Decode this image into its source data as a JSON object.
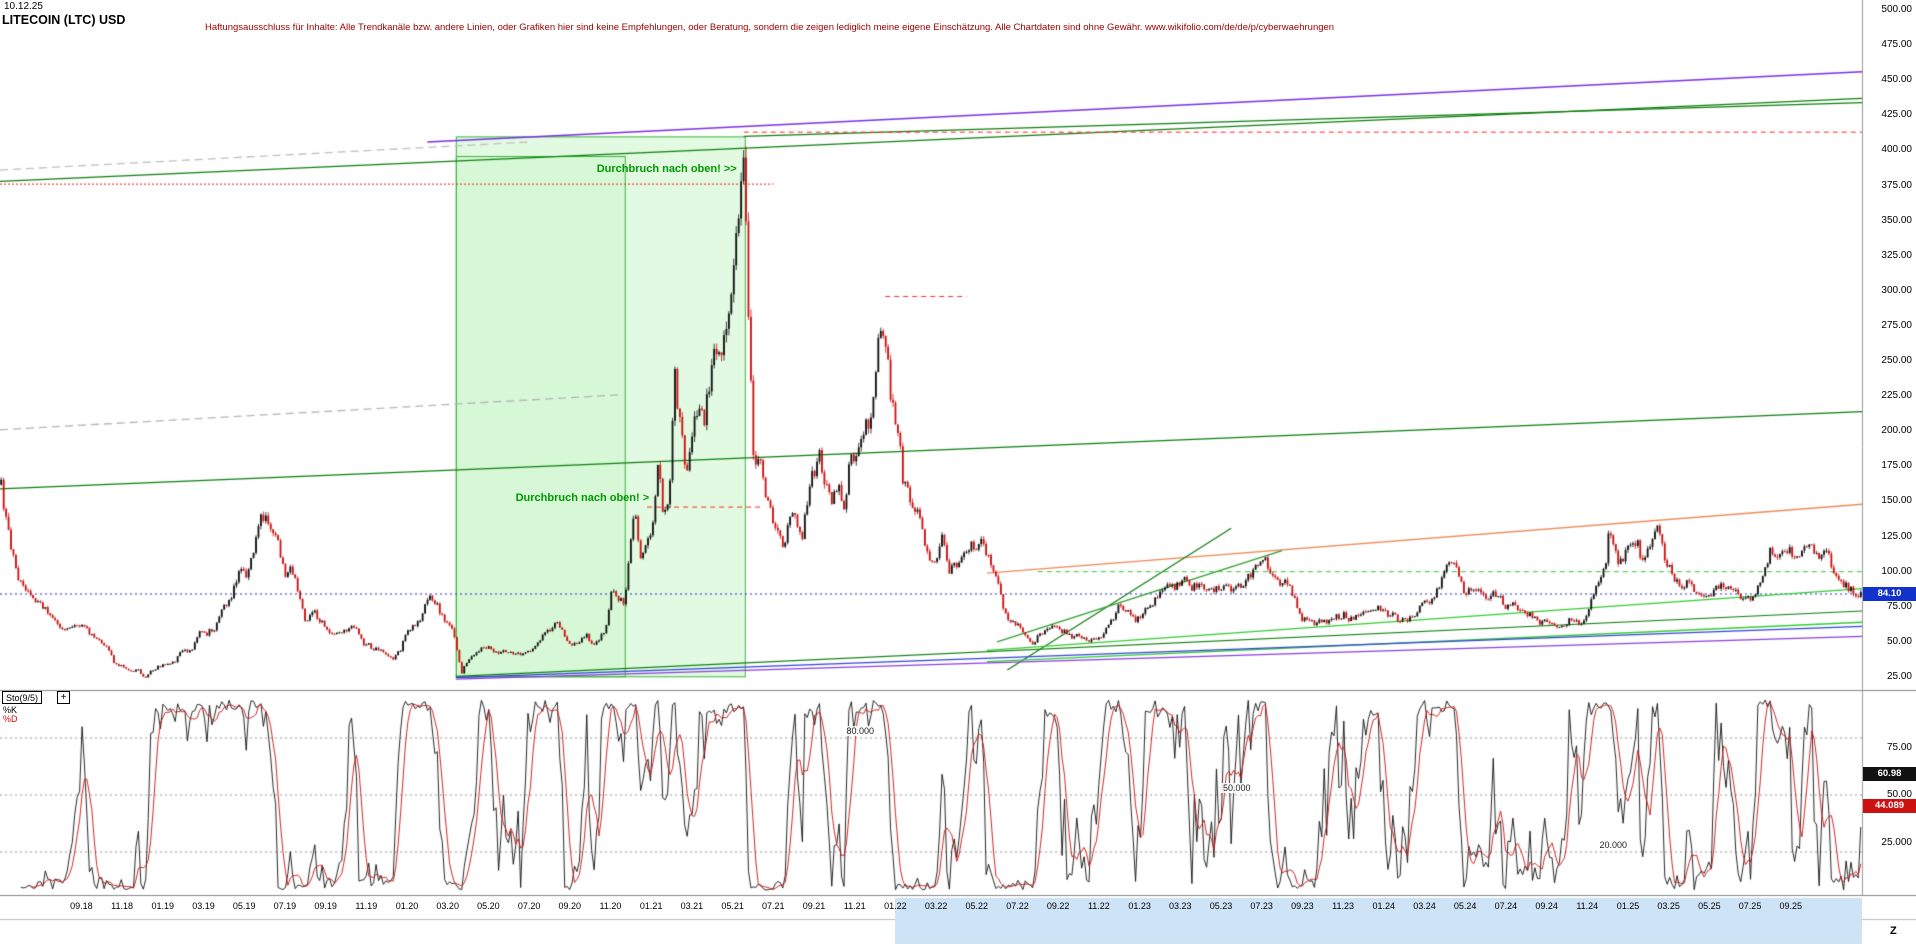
{
  "window": {
    "date_label": "10.12.25",
    "title": "LITECOIN (LTC) USD",
    "disclaimer": "Haftungsausschluss für Inhalte: Alle Trendkanäle bzw. andere Linien, oder Grafiken hier sind keine Empfehlungen, oder Beratung, sondern die zeigen lediglich meine eigene Einschätzung. Alle Chartdaten sind ohne Gewähr.  www.wikifolio.com/de/de/p/cyberwaehrungen",
    "zoom_tool_label": "Z"
  },
  "chart_data": {
    "type": "candlestick",
    "title": "LITECOIN (LTC) USD",
    "x_domain_months": [
      -4,
      87.5
    ],
    "x_axis": {
      "first_label_month": 0,
      "label_step_months": 2,
      "highlight_from_month": 40,
      "labels": [
        "09.18",
        "11.18",
        "01.19",
        "03.19",
        "05.19",
        "07.19",
        "09.19",
        "11.19",
        "01.20",
        "03.20",
        "05.20",
        "07.20",
        "09.20",
        "11.20",
        "01.21",
        "03.21",
        "05.21",
        "07.21",
        "09.21",
        "11.21",
        "01.22",
        "03.22",
        "05.22",
        "07.22",
        "09.22",
        "11.22",
        "01.23",
        "03.23",
        "05.23",
        "07.23",
        "09.23",
        "11.23",
        "01.24",
        "03.24",
        "05.24",
        "07.24",
        "09.24",
        "11.24",
        "01.25",
        "03.25",
        "05.25",
        "07.25",
        "09.25"
      ]
    },
    "y_axis": {
      "range": [
        25,
        500
      ],
      "max": 500,
      "step": 25,
      "tick_labels": [
        "500.00",
        "475.00",
        "450.00",
        "425.00",
        "400.00",
        "375.00",
        "350.00",
        "325.00",
        "300.00",
        "275.00",
        "250.00",
        "225.00",
        "200.00",
        "175.00",
        "150.00",
        "125.00",
        "100.00",
        "75.00",
        "50.00",
        "25.00"
      ]
    },
    "current_price": {
      "label": "84.10",
      "value": 84.1,
      "color": "#1133cc"
    },
    "candles": {
      "count": 760,
      "noise": 0.035,
      "wick": 0.02,
      "up_color": "#111111",
      "down_color": "#cc1111"
    },
    "price_path": [
      [
        -4,
        168
      ],
      [
        -3.6,
        128
      ],
      [
        -3.2,
        100
      ],
      [
        -2.8,
        88
      ],
      [
        -2.4,
        82
      ],
      [
        -2,
        78
      ],
      [
        -1.6,
        70
      ],
      [
        -1.2,
        63
      ],
      [
        -0.8,
        58
      ],
      [
        -0.4,
        60
      ],
      [
        0,
        61
      ],
      [
        0.4,
        57
      ],
      [
        0.8,
        53
      ],
      [
        1.2,
        47
      ],
      [
        1.6,
        36
      ],
      [
        2,
        32
      ],
      [
        2.4,
        29
      ],
      [
        2.8,
        31
      ],
      [
        3.1,
        24
      ],
      [
        3.4,
        30
      ],
      [
        3.8,
        32
      ],
      [
        4.2,
        34
      ],
      [
        4.6,
        36
      ],
      [
        5,
        45
      ],
      [
        5.4,
        43
      ],
      [
        5.8,
        58
      ],
      [
        6.2,
        56
      ],
      [
        6.6,
        61
      ],
      [
        7,
        74
      ],
      [
        7.4,
        82
      ],
      [
        7.8,
        104
      ],
      [
        8.1,
        94
      ],
      [
        8.4,
        112
      ],
      [
        8.8,
        136
      ],
      [
        9.1,
        143
      ],
      [
        9.4,
        128
      ],
      [
        9.7,
        118
      ],
      [
        10,
        96
      ],
      [
        10.3,
        105
      ],
      [
        10.6,
        90
      ],
      [
        11,
        66
      ],
      [
        11.4,
        72
      ],
      [
        11.8,
        64
      ],
      [
        12.2,
        56
      ],
      [
        12.6,
        57
      ],
      [
        13,
        59
      ],
      [
        13.4,
        62
      ],
      [
        13.8,
        50
      ],
      [
        14.2,
        47
      ],
      [
        14.6,
        44
      ],
      [
        15,
        42
      ],
      [
        15.3,
        37
      ],
      [
        15.7,
        45
      ],
      [
        16,
        58
      ],
      [
        16.4,
        61
      ],
      [
        16.8,
        71
      ],
      [
        17.1,
        83
      ],
      [
        17.5,
        75
      ],
      [
        17.8,
        66
      ],
      [
        18.2,
        61
      ],
      [
        18.5,
        40
      ],
      [
        18.7,
        28
      ],
      [
        19,
        38
      ],
      [
        19.4,
        43
      ],
      [
        19.8,
        47
      ],
      [
        20.2,
        44
      ],
      [
        20.6,
        42
      ],
      [
        21,
        44
      ],
      [
        21.4,
        41
      ],
      [
        21.8,
        43
      ],
      [
        22.2,
        45
      ],
      [
        22.6,
        53
      ],
      [
        23,
        59
      ],
      [
        23.3,
        64
      ],
      [
        23.7,
        57
      ],
      [
        24,
        47
      ],
      [
        24.4,
        49
      ],
      [
        24.8,
        55
      ],
      [
        25.1,
        47
      ],
      [
        25.5,
        52
      ],
      [
        25.8,
        62
      ],
      [
        26.1,
        90
      ],
      [
        26.4,
        82
      ],
      [
        26.7,
        76
      ],
      [
        27,
        125
      ],
      [
        27.2,
        142
      ],
      [
        27.5,
        108
      ],
      [
        27.8,
        122
      ],
      [
        28.1,
        132
      ],
      [
        28.3,
        180
      ],
      [
        28.6,
        142
      ],
      [
        28.9,
        158
      ],
      [
        29.15,
        242
      ],
      [
        29.4,
        205
      ],
      [
        29.7,
        172
      ],
      [
        30,
        196
      ],
      [
        30.3,
        216
      ],
      [
        30.6,
        205
      ],
      [
        30.9,
        238
      ],
      [
        31.2,
        262
      ],
      [
        31.5,
        252
      ],
      [
        31.8,
        292
      ],
      [
        32.1,
        322
      ],
      [
        32.35,
        365
      ],
      [
        32.55,
        408
      ],
      [
        32.7,
        330
      ],
      [
        32.85,
        252
      ],
      [
        33.05,
        168
      ],
      [
        33.3,
        182
      ],
      [
        33.6,
        152
      ],
      [
        33.9,
        142
      ],
      [
        34.2,
        126
      ],
      [
        34.5,
        118
      ],
      [
        34.8,
        136
      ],
      [
        35.1,
        138
      ],
      [
        35.4,
        122
      ],
      [
        35.7,
        152
      ],
      [
        36,
        172
      ],
      [
        36.3,
        182
      ],
      [
        36.6,
        162
      ],
      [
        36.9,
        150
      ],
      [
        37.2,
        166
      ],
      [
        37.5,
        142
      ],
      [
        37.8,
        186
      ],
      [
        38.1,
        176
      ],
      [
        38.4,
        196
      ],
      [
        38.7,
        208
      ],
      [
        39,
        232
      ],
      [
        39.3,
        282
      ],
      [
        39.5,
        262
      ],
      [
        39.8,
        222
      ],
      [
        40.1,
        204
      ],
      [
        40.4,
        162
      ],
      [
        40.8,
        148
      ],
      [
        41.1,
        142
      ],
      [
        41.4,
        122
      ],
      [
        41.7,
        108
      ],
      [
        42,
        110
      ],
      [
        42.3,
        128
      ],
      [
        42.6,
        100
      ],
      [
        43,
        106
      ],
      [
        43.4,
        114
      ],
      [
        43.8,
        118
      ],
      [
        44.2,
        122
      ],
      [
        44.6,
        108
      ],
      [
        45,
        98
      ],
      [
        45.3,
        72
      ],
      [
        45.7,
        62
      ],
      [
        46,
        65
      ],
      [
        46.3,
        56
      ],
      [
        46.7,
        49
      ],
      [
        47,
        53
      ],
      [
        47.4,
        58
      ],
      [
        47.8,
        61
      ],
      [
        48.2,
        58
      ],
      [
        48.6,
        54
      ],
      [
        49,
        55
      ],
      [
        49.4,
        52
      ],
      [
        49.8,
        51
      ],
      [
        50.2,
        56
      ],
      [
        50.6,
        64
      ],
      [
        51,
        77
      ],
      [
        51.4,
        72
      ],
      [
        51.8,
        66
      ],
      [
        52.2,
        71
      ],
      [
        52.6,
        76
      ],
      [
        53,
        87
      ],
      [
        53.4,
        94
      ],
      [
        53.8,
        89
      ],
      [
        54.2,
        94
      ],
      [
        54.6,
        89
      ],
      [
        55,
        91
      ],
      [
        55.4,
        86
      ],
      [
        55.8,
        88
      ],
      [
        56.2,
        90
      ],
      [
        56.6,
        87
      ],
      [
        57,
        91
      ],
      [
        57.4,
        97
      ],
      [
        57.8,
        105
      ],
      [
        58.1,
        112
      ],
      [
        58.4,
        99
      ],
      [
        58.8,
        91
      ],
      [
        59.2,
        94
      ],
      [
        59.6,
        83
      ],
      [
        60,
        66
      ],
      [
        60.4,
        63
      ],
      [
        60.8,
        65
      ],
      [
        61.2,
        64
      ],
      [
        61.6,
        67
      ],
      [
        62,
        69
      ],
      [
        62.4,
        66
      ],
      [
        62.8,
        70
      ],
      [
        63.2,
        72
      ],
      [
        63.6,
        74
      ],
      [
        64,
        72
      ],
      [
        64.4,
        69
      ],
      [
        64.8,
        66
      ],
      [
        65.2,
        67
      ],
      [
        65.6,
        71
      ],
      [
        66,
        82
      ],
      [
        66.4,
        79
      ],
      [
        66.8,
        93
      ],
      [
        67.1,
        102
      ],
      [
        67.4,
        108
      ],
      [
        67.7,
        95
      ],
      [
        68,
        85
      ],
      [
        68.4,
        90
      ],
      [
        68.8,
        86
      ],
      [
        69.2,
        82
      ],
      [
        69.6,
        85
      ],
      [
        70,
        74
      ],
      [
        70.4,
        77
      ],
      [
        70.8,
        71
      ],
      [
        71.2,
        69
      ],
      [
        71.6,
        64
      ],
      [
        72,
        65
      ],
      [
        72.4,
        61
      ],
      [
        72.8,
        63
      ],
      [
        73.2,
        66
      ],
      [
        73.6,
        63
      ],
      [
        74,
        70
      ],
      [
        74.3,
        82
      ],
      [
        74.6,
        96
      ],
      [
        74.9,
        104
      ],
      [
        75.1,
        132
      ],
      [
        75.3,
        118
      ],
      [
        75.6,
        106
      ],
      [
        75.9,
        112
      ],
      [
        76.2,
        124
      ],
      [
        76.5,
        118
      ],
      [
        76.8,
        104
      ],
      [
        77.1,
        122
      ],
      [
        77.4,
        134
      ],
      [
        77.7,
        116
      ],
      [
        78,
        104
      ],
      [
        78.3,
        96
      ],
      [
        78.6,
        88
      ],
      [
        79,
        92
      ],
      [
        79.4,
        84
      ],
      [
        79.8,
        80
      ],
      [
        80.2,
        86
      ],
      [
        80.6,
        92
      ],
      [
        81,
        88
      ],
      [
        81.4,
        85
      ],
      [
        81.8,
        80
      ],
      [
        82.2,
        84
      ],
      [
        82.6,
        96
      ],
      [
        83,
        114
      ],
      [
        83.4,
        108
      ],
      [
        83.8,
        118
      ],
      [
        84.2,
        107
      ],
      [
        84.6,
        113
      ],
      [
        85,
        121
      ],
      [
        85.4,
        109
      ],
      [
        85.8,
        114
      ],
      [
        86.2,
        97
      ],
      [
        86.6,
        90
      ],
      [
        87,
        87
      ],
      [
        87.2,
        82
      ],
      [
        87.5,
        84.1
      ]
    ],
    "trend_lines": [
      {
        "name": "upper-channel-green",
        "from": [
          -4,
          378
        ],
        "to": [
          87.5,
          437
        ],
        "color": "#0f7d0f",
        "width": 1.2
      },
      {
        "name": "box-top-green",
        "from": [
          32.55,
          410
        ],
        "to": [
          87.5,
          434
        ],
        "color": "#0f7d0f",
        "width": 1.2
      },
      {
        "name": "upper-purple",
        "from": [
          17,
          406
        ],
        "to": [
          87.5,
          456
        ],
        "color": "#7a2fe8",
        "width": 1.5
      },
      {
        "name": "ath-red-dashed",
        "from": [
          32.55,
          413
        ],
        "to": [
          87.5,
          413
        ],
        "color": "#ff2a2a",
        "width": 1,
        "dash": [
          5,
          4
        ]
      },
      {
        "name": "left-red-dotted",
        "from": [
          -4,
          376
        ],
        "to": [
          34,
          376
        ],
        "color": "#ee2222",
        "width": 1,
        "dash": [
          2,
          2
        ]
      },
      {
        "name": "gray-dashed-top",
        "from": [
          -4,
          386
        ],
        "to": [
          22,
          406
        ],
        "color": "#c0c0c0",
        "width": 1.3,
        "dash": [
          8,
          5
        ]
      },
      {
        "name": "gray-dashed-mid",
        "from": [
          -4,
          201
        ],
        "to": [
          26.5,
          226
        ],
        "color": "#b5b5b5",
        "width": 1.3,
        "dash": [
          8,
          5
        ]
      },
      {
        "name": "mid-green",
        "from": [
          -4,
          159
        ],
        "to": [
          87.5,
          214
        ],
        "color": "#0f7d0f",
        "width": 1.2
      },
      {
        "name": "current-price-blue-dotted",
        "from": [
          -4,
          84.1
        ],
        "to": [
          87.5,
          84.1
        ],
        "color": "#2233cc",
        "width": 1,
        "dash": [
          2,
          3
        ]
      },
      {
        "name": "nov21-red-dashed",
        "from": [
          39.5,
          296
        ],
        "to": [
          43.5,
          296
        ],
        "color": "#ff2a2a",
        "width": 1,
        "dash": [
          5,
          4
        ]
      },
      {
        "name": "high2019-red-dashed",
        "from": [
          27.8,
          146
        ],
        "to": [
          33.5,
          146
        ],
        "color": "#ff2a2a",
        "width": 1,
        "dash": [
          5,
          4
        ]
      },
      {
        "name": "orange-resistance",
        "from": [
          44.5,
          99
        ],
        "to": [
          87.5,
          148
        ],
        "color": "#f08a5a",
        "width": 1.4
      },
      {
        "name": "steep-green",
        "from": [
          45.5,
          30
        ],
        "to": [
          56.5,
          131
        ],
        "color": "#0f7d0f",
        "width": 1.2
      },
      {
        "name": "wedge-green",
        "from": [
          45,
          50
        ],
        "to": [
          59,
          115
        ],
        "color": "#2e9e2e",
        "width": 1.2
      },
      {
        "name": "lime-support-upper",
        "from": [
          44.5,
          44
        ],
        "to": [
          87.5,
          88
        ],
        "color": "#33cc33",
        "width": 1.3
      },
      {
        "name": "lime-support-lower",
        "from": [
          44.5,
          36
        ],
        "to": [
          87.5,
          64
        ],
        "color": "#33cc33",
        "width": 1.3
      },
      {
        "name": "bottom-green",
        "from": [
          18.4,
          25.5
        ],
        "to": [
          87.5,
          72
        ],
        "color": "#0f7d0f",
        "width": 1.2
      },
      {
        "name": "bottom-blue",
        "from": [
          18.4,
          24.5
        ],
        "to": [
          87.5,
          61
        ],
        "color": "#3344dd",
        "width": 1.2
      },
      {
        "name": "bottom-purple",
        "from": [
          18.4,
          23.5
        ],
        "to": [
          87.5,
          54
        ],
        "color": "#8a3fe0",
        "width": 1.2
      },
      {
        "name": "lime-dashed-100",
        "from": [
          47,
          100
        ],
        "to": [
          87.5,
          100
        ],
        "color": "#33cc33",
        "width": 1,
        "dash": [
          5,
          4
        ]
      }
    ],
    "boxes": [
      {
        "name": "breakout-box-outer",
        "x": [
          18.4,
          32.6
        ],
        "y": [
          25.5,
          410
        ],
        "fill": "rgba(170,240,170,0.35)",
        "stroke": "#3cb43c"
      },
      {
        "name": "breakout-box-inner",
        "x": [
          18.4,
          26.7
        ],
        "y": [
          25.5,
          396
        ],
        "fill": "rgba(170,240,170,0.2)",
        "stroke": "#3cb43c"
      }
    ],
    "annotations": [
      {
        "text": "Durchbruch nach oben! >>",
        "month": 32.2,
        "price": 386,
        "align": "right",
        "color": "#009900"
      },
      {
        "text": "Durchbruch nach oben! >",
        "month": 27.9,
        "price": 152,
        "align": "right",
        "color": "#009900"
      }
    ],
    "indicator_panel": {
      "name": "Sto(9/5)",
      "add_label": "+",
      "k_label": "%K",
      "d_label": "%D",
      "k_value": "60.98",
      "d_value": "44.089",
      "k_color": "#111111",
      "d_color": "#cc1111",
      "range": [
        0,
        100
      ],
      "params": {
        "k_period": 9,
        "d_period": 5
      },
      "guides": [
        {
          "value": 80,
          "label": "80.000",
          "label_month": 37.5
        },
        {
          "value": 50,
          "label": "50.000",
          "label_month": 56
        },
        {
          "value": 20,
          "label": "20.000",
          "label_month": 74.5
        }
      ],
      "right_labels": [
        {
          "value": 75,
          "label": "75.00"
        },
        {
          "value": 50,
          "label": "50.00"
        },
        {
          "value": 25,
          "label": "25.000"
        }
      ]
    }
  }
}
